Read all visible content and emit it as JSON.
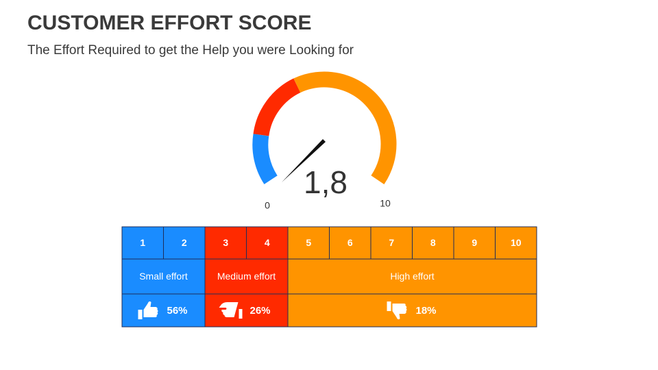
{
  "header": {
    "title": "CUSTOMER EFFORT SCORE",
    "subtitle": "The Effort Required to get the Help you were Looking for"
  },
  "gauge": {
    "value_label": "1,8",
    "min_label": "0",
    "max_label": "10"
  },
  "table": {
    "scale": [
      {
        "label": "1",
        "color": "#1a8cff"
      },
      {
        "label": "2",
        "color": "#1a8cff"
      },
      {
        "label": "3",
        "color": "#ff2a00"
      },
      {
        "label": "4",
        "color": "#ff2a00"
      },
      {
        "label": "5",
        "color": "#ff9400"
      },
      {
        "label": "6",
        "color": "#ff9400"
      },
      {
        "label": "7",
        "color": "#ff9400"
      },
      {
        "label": "8",
        "color": "#ff9400"
      },
      {
        "label": "9",
        "color": "#ff9400"
      },
      {
        "label": "10",
        "color": "#ff9400"
      }
    ],
    "levels": [
      {
        "label": "Small effort",
        "share": "56%",
        "color": "#1a8cff",
        "icon": "up"
      },
      {
        "label": "Medium effort",
        "share": "26%",
        "color": "#ff2a00",
        "icon": "side"
      },
      {
        "label": "High effort",
        "share": "18%",
        "color": "#ff9400",
        "icon": "down"
      }
    ]
  }
}
